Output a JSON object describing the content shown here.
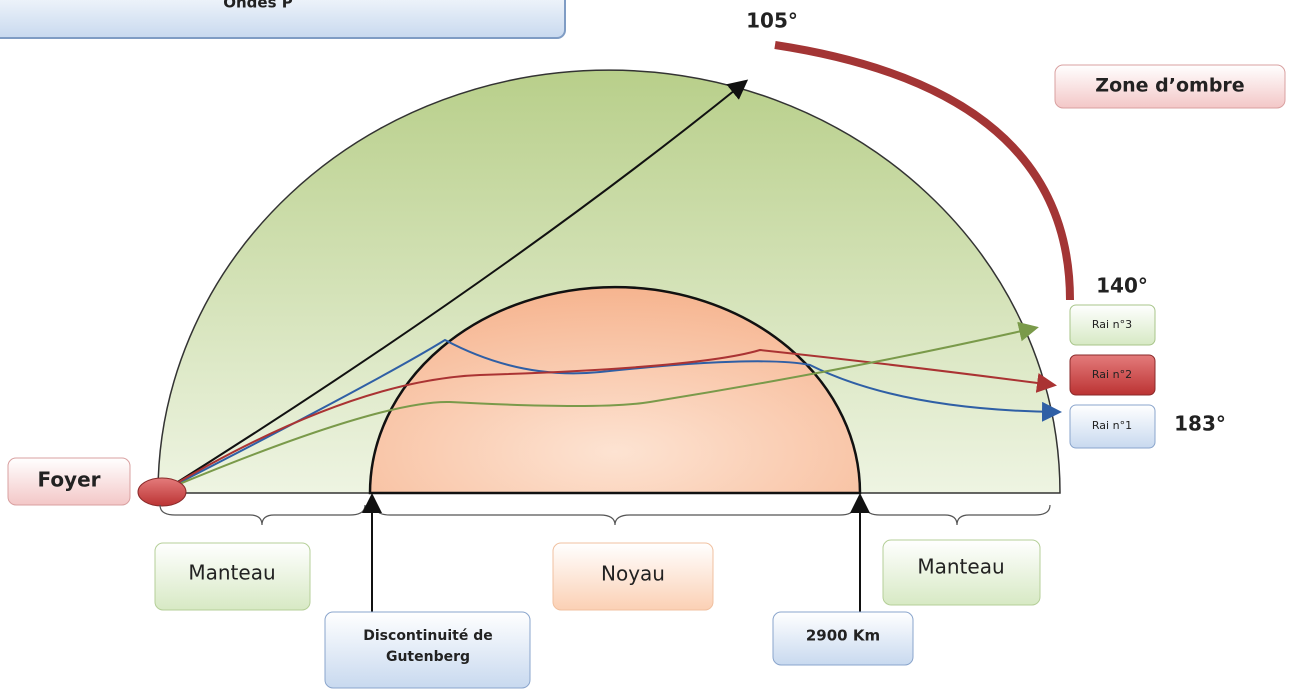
{
  "header": {
    "title": "Ondes P"
  },
  "angles": {
    "start": "105°",
    "mid": "140°",
    "end": "183°"
  },
  "shadow_zone": "Zone d’ombre",
  "focus": "Foyer",
  "rays": [
    "Rai n°3",
    "Rai n°2",
    "Rai n°1"
  ],
  "layers": {
    "mantle_left": "Manteau",
    "core": "Noyau",
    "mantle_right": "Manteau"
  },
  "discontinuity": [
    "Discontinuité de",
    "Gutenberg"
  ],
  "depth": "2900 Km"
}
